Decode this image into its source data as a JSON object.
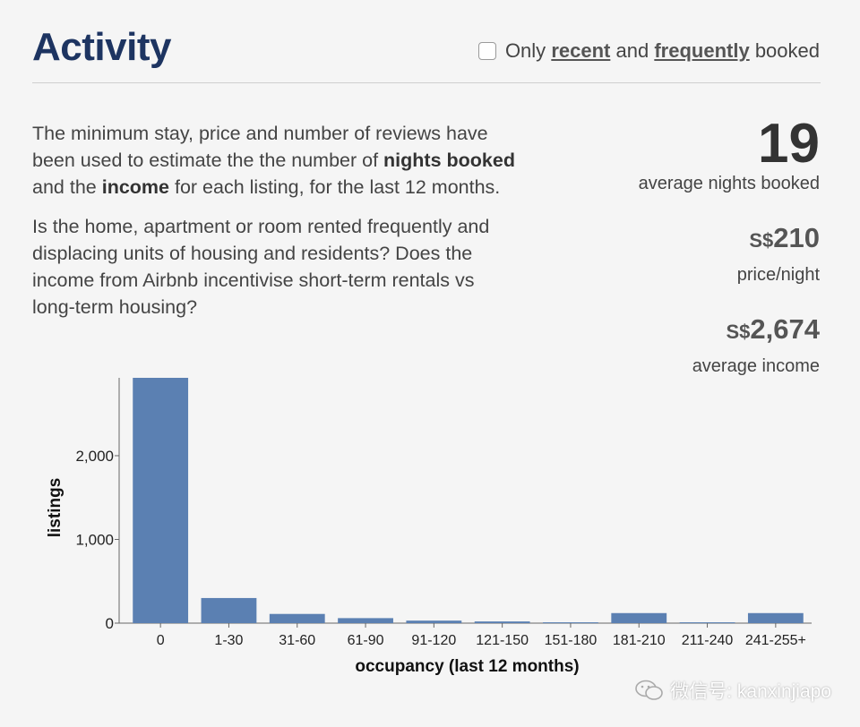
{
  "header": {
    "title": "Activity",
    "filter": {
      "pre": "Only",
      "recent": "recent",
      "and": "and",
      "frequently": "frequently",
      "post": "booked",
      "checked": false
    }
  },
  "description": {
    "p1_a": "The minimum stay, price and number of reviews have been used to estimate the the number of",
    "p1_b1": "nights booked",
    "p1_c": "and the",
    "p1_b2": "income",
    "p1_d": "for each listing, for the last 12 months.",
    "p2": "Is the home, apartment or room rented frequently and displacing units of housing and residents? Does the income from Airbnb incentivise short-term rentals vs long-term housing?"
  },
  "stats": {
    "nights_value": "19",
    "nights_label": "average nights booked",
    "currency": "S$",
    "price_value": "210",
    "price_label": "price/night",
    "income_value": "2,674",
    "income_label": "average income"
  },
  "chart_data": {
    "type": "bar",
    "title": "",
    "xlabel": "occupancy (last 12 months)",
    "ylabel": "listings",
    "categories": [
      "0",
      "1-30",
      "31-60",
      "61-90",
      "91-120",
      "121-150",
      "151-180",
      "181-210",
      "211-240",
      "241-255+"
    ],
    "values": [
      2930,
      300,
      110,
      60,
      30,
      20,
      10,
      120,
      10,
      120
    ],
    "ylim": [
      0,
      2930
    ],
    "yticks": [
      0,
      1000,
      2000
    ],
    "ytick_labels": [
      "0",
      "1,000",
      "2,000"
    ],
    "color": "#5b80b2"
  },
  "watermark": {
    "text": "微信号: kanxinjiapo"
  },
  "colors": {
    "title": "#1d3461",
    "bar": "#5b80b2",
    "background": "#f5f5f5"
  }
}
